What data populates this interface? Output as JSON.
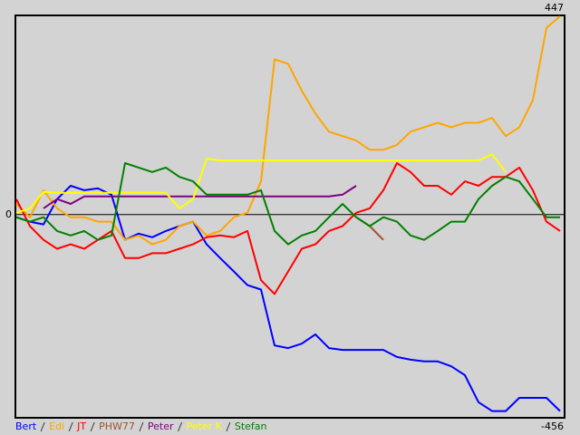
{
  "chart_data": {
    "type": "line",
    "ylim": [
      -456,
      447
    ],
    "yticks": [
      -456,
      0,
      447
    ],
    "series": [
      {
        "name": "Bert",
        "color": "#0000ff",
        "values": [
          -6,
          -16,
          -22,
          35,
          65,
          55,
          59,
          45,
          -57,
          -43,
          -51,
          -37,
          -26,
          -16,
          -67,
          -98,
          -128,
          -159,
          -169,
          -295,
          -301,
          -291,
          -270,
          -301,
          -305,
          -305,
          -305,
          -305,
          -321,
          -327,
          -331,
          -331,
          -342,
          -362,
          -423,
          -443,
          -443,
          -413,
          -413,
          -413,
          -443
        ]
      },
      {
        "name": "Edi",
        "color": "#ffa500",
        "values": [
          24,
          -6,
          55,
          14,
          -6,
          -6,
          -16,
          -16,
          -57,
          -47,
          -67,
          -57,
          -26,
          -16,
          -47,
          -37,
          -6,
          4,
          75,
          350,
          340,
          279,
          228,
          187,
          177,
          167,
          146,
          146,
          157,
          187,
          197,
          207,
          197,
          207,
          207,
          218,
          177,
          197,
          258,
          421,
          447
        ]
      },
      {
        "name": "JT",
        "color": "#ff0000",
        "values": [
          35,
          -26,
          -57,
          -77,
          -67,
          -77,
          -57,
          -37,
          -98,
          -98,
          -87,
          -87,
          -77,
          -67,
          -51,
          -47,
          -51,
          -37,
          -148,
          -179,
          -128,
          -77,
          -67,
          -37,
          -26,
          4,
          14,
          55,
          116,
          96,
          65,
          65,
          45,
          75,
          65,
          85,
          85,
          106,
          55,
          -16,
          -37
        ]
      },
      {
        "name": "PHW77",
        "color": "#a0522d",
        "values": [
          null,
          null,
          null,
          null,
          null,
          null,
          null,
          null,
          null,
          null,
          null,
          null,
          null,
          null,
          null,
          null,
          null,
          null,
          null,
          null,
          null,
          null,
          null,
          null,
          null,
          -6,
          -26,
          -57,
          null,
          null,
          null,
          null,
          null,
          null,
          null,
          null,
          null,
          null,
          null,
          null,
          null
        ]
      },
      {
        "name": "Peter",
        "color": "#800080",
        "values": [
          null,
          null,
          14,
          35,
          24,
          41,
          41,
          41,
          41,
          41,
          41,
          41,
          41,
          41,
          41,
          41,
          41,
          41,
          41,
          41,
          41,
          41,
          41,
          41,
          45,
          65,
          null,
          null,
          null,
          null,
          null,
          null,
          null,
          null,
          null,
          null,
          null,
          null,
          null,
          null,
          null
        ]
      },
      {
        "name": "Peter K",
        "color": "#ffff00",
        "values": [
          4,
          14,
          51,
          49,
          49,
          49,
          49,
          49,
          49,
          49,
          49,
          49,
          14,
          35,
          126,
          122,
          122,
          122,
          122,
          122,
          122,
          122,
          122,
          122,
          122,
          122,
          122,
          122,
          122,
          122,
          122,
          122,
          122,
          122,
          122,
          136,
          96,
          null,
          null,
          null,
          null
        ]
      },
      {
        "name": "Stefan",
        "color": "#008000",
        "values": [
          -6,
          -16,
          -6,
          -37,
          -47,
          -37,
          -57,
          -47,
          116,
          106,
          96,
          106,
          85,
          75,
          45,
          45,
          45,
          45,
          55,
          -37,
          -67,
          -47,
          -37,
          -6,
          24,
          -6,
          -26,
          -6,
          -16,
          -47,
          -57,
          -37,
          -16,
          -16,
          35,
          65,
          85,
          75,
          35,
          -6,
          -6
        ]
      }
    ]
  }
}
